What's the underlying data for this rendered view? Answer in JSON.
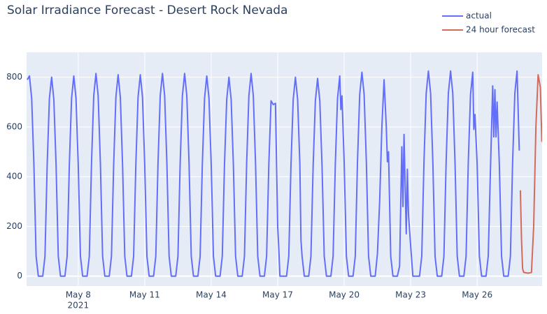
{
  "chart_data": {
    "type": "line",
    "title": "Solar Irradiance Forecast - Desert Rock Nevada",
    "xlim": [
      5.67,
      28.93
    ],
    "xticks": [
      {
        "value": 8,
        "label": "May 8"
      },
      {
        "value": 11,
        "label": "May 11"
      },
      {
        "value": 14,
        "label": "May 14"
      },
      {
        "value": 17,
        "label": "May 17"
      },
      {
        "value": 20,
        "label": "May 20"
      },
      {
        "value": 23,
        "label": "May 23"
      },
      {
        "value": 26,
        "label": "May 26"
      }
    ],
    "xtick_year": "2021",
    "ylim": [
      -40,
      900
    ],
    "yticks": [
      0,
      200,
      400,
      600,
      800
    ],
    "grid": true,
    "legend": "top-right",
    "series": [
      {
        "name": "actual",
        "color": "#636efa",
        "x": [
          5.7,
          5.8,
          5.9,
          6,
          6.1,
          6.2,
          6.4,
          6.5,
          6.6,
          6.7,
          6.8,
          6.9,
          7,
          7.1,
          7.2,
          7.4,
          7.5,
          7.6,
          7.7,
          7.8,
          7.9,
          8,
          8.1,
          8.2,
          8.4,
          8.5,
          8.6,
          8.7,
          8.8,
          8.9,
          9,
          9.1,
          9.2,
          9.4,
          9.5,
          9.6,
          9.7,
          9.8,
          9.9,
          10,
          10.1,
          10.2,
          10.4,
          10.5,
          10.6,
          10.7,
          10.8,
          10.9,
          11,
          11.1,
          11.2,
          11.4,
          11.5,
          11.6,
          11.7,
          11.8,
          11.9,
          12,
          12.1,
          12.2,
          12.4,
          12.5,
          12.6,
          12.7,
          12.8,
          12.9,
          13,
          13.1,
          13.2,
          13.4,
          13.5,
          13.6,
          13.7,
          13.8,
          13.9,
          14,
          14.1,
          14.2,
          14.4,
          14.5,
          14.6,
          14.7,
          14.8,
          14.9,
          15,
          15.1,
          15.2,
          15.4,
          15.5,
          15.6,
          15.7,
          15.8,
          15.9,
          16,
          16.1,
          16.2,
          16.4,
          16.5,
          16.6,
          16.7,
          16.8,
          16.9,
          17,
          17.05,
          17.1,
          17.2,
          17.4,
          17.5,
          17.6,
          17.7,
          17.8,
          17.9,
          18,
          18.05,
          18.1,
          18.2,
          18.4,
          18.5,
          18.6,
          18.7,
          18.8,
          18.9,
          19,
          19.1,
          19.2,
          19.4,
          19.5,
          19.6,
          19.7,
          19.8,
          19.85,
          19.9,
          20,
          20.1,
          20.2,
          20.4,
          20.5,
          20.6,
          20.7,
          20.8,
          20.9,
          21,
          21.1,
          21.2,
          21.4,
          21.5,
          21.6,
          21.7,
          21.8,
          21.9,
          21.95,
          22,
          22.1,
          22.2,
          22.4,
          22.5,
          22.6,
          22.65,
          22.7,
          22.8,
          22.85,
          22.9,
          23,
          23.1,
          23.2,
          23.4,
          23.5,
          23.6,
          23.7,
          23.8,
          23.9,
          24,
          24.1,
          24.2,
          24.4,
          24.5,
          24.6,
          24.7,
          24.8,
          24.9,
          25,
          25.1,
          25.2,
          25.4,
          25.5,
          25.6,
          25.7,
          25.8,
          25.85,
          25.9,
          26,
          26.1,
          26.2,
          26.4,
          26.5,
          26.6,
          26.7,
          26.75,
          26.8,
          26.85,
          26.9,
          27,
          27.1,
          27.2,
          27.4,
          27.5,
          27.6,
          27.7,
          27.8,
          27.9
        ],
        "values": [
          790,
          805,
          715,
          450,
          80,
          0,
          0,
          80,
          450,
          715,
          800,
          710,
          450,
          80,
          0,
          0,
          80,
          450,
          715,
          805,
          715,
          450,
          80,
          0,
          0,
          80,
          455,
          725,
          815,
          725,
          455,
          80,
          0,
          0,
          80,
          450,
          720,
          810,
          720,
          450,
          80,
          0,
          0,
          80,
          450,
          720,
          810,
          720,
          450,
          80,
          0,
          0,
          80,
          455,
          725,
          815,
          725,
          455,
          80,
          0,
          0,
          80,
          455,
          725,
          815,
          725,
          455,
          80,
          0,
          0,
          80,
          450,
          715,
          805,
          715,
          450,
          80,
          0,
          0,
          80,
          450,
          710,
          800,
          710,
          450,
          80,
          0,
          0,
          80,
          455,
          725,
          815,
          725,
          455,
          80,
          0,
          0,
          80,
          450,
          705,
          690,
          695,
          200,
          110,
          0,
          0,
          0,
          80,
          450,
          710,
          800,
          710,
          450,
          145,
          80,
          0,
          0,
          80,
          445,
          705,
          795,
          705,
          445,
          80,
          0,
          0,
          80,
          450,
          715,
          805,
          670,
          725,
          455,
          80,
          0,
          0,
          80,
          460,
          730,
          820,
          730,
          460,
          80,
          0,
          0,
          90,
          300,
          600,
          790,
          600,
          460,
          500,
          80,
          0,
          0,
          40,
          520,
          280,
          570,
          170,
          430,
          250,
          120,
          0,
          0,
          0,
          80,
          460,
          735,
          825,
          735,
          460,
          80,
          0,
          0,
          80,
          460,
          735,
          825,
          735,
          460,
          80,
          0,
          0,
          80,
          460,
          730,
          820,
          590,
          650,
          450,
          80,
          0,
          0,
          80,
          430,
          765,
          560,
          750,
          560,
          700,
          450,
          80,
          0,
          0,
          80,
          460,
          735,
          825,
          505
        ]
      },
      {
        "name": "24 hour forecast",
        "color": "#d46a5a",
        "x": [
          27.95,
          28,
          28.05,
          28.1,
          28.3,
          28.45,
          28.55,
          28.65,
          28.75,
          28.85,
          28.92
        ],
        "values": [
          345,
          150,
          30,
          15,
          12,
          15,
          200,
          600,
          810,
          760,
          540
        ]
      }
    ]
  }
}
